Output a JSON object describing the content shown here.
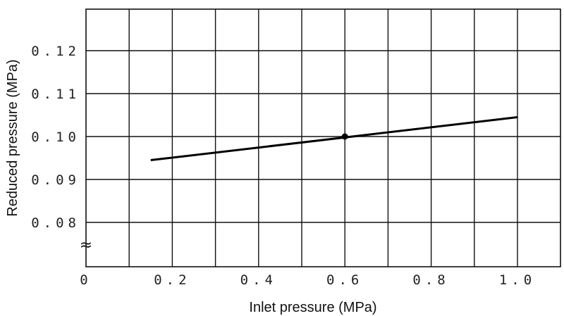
{
  "chart_data": {
    "type": "line",
    "title": "",
    "xlabel": "Inlet pressure (MPa)",
    "ylabel": "Reduced pressure (MPa)",
    "xlim": [
      0,
      1.1
    ],
    "ylim_displayed": [
      0.08,
      0.12
    ],
    "x_ticks": [
      0,
      0.2,
      0.4,
      0.6,
      0.8,
      1.0
    ],
    "x_tick_labels": [
      "0",
      "0.2",
      "0.4",
      "0.6",
      "0.8",
      "1.0"
    ],
    "y_ticks": [
      0.08,
      0.09,
      0.1,
      0.11,
      0.12
    ],
    "y_tick_labels": [
      "0.08",
      "0.09",
      "0.10",
      "0.11",
      "0.12"
    ],
    "axis_break_symbol": "≈",
    "grid": true,
    "series": [
      {
        "x": [
          0.15,
          1.0
        ],
        "y": [
          0.0945,
          0.1045
        ],
        "color": "#000000"
      }
    ],
    "marker": {
      "x": 0.6,
      "y": 0.1
    }
  }
}
